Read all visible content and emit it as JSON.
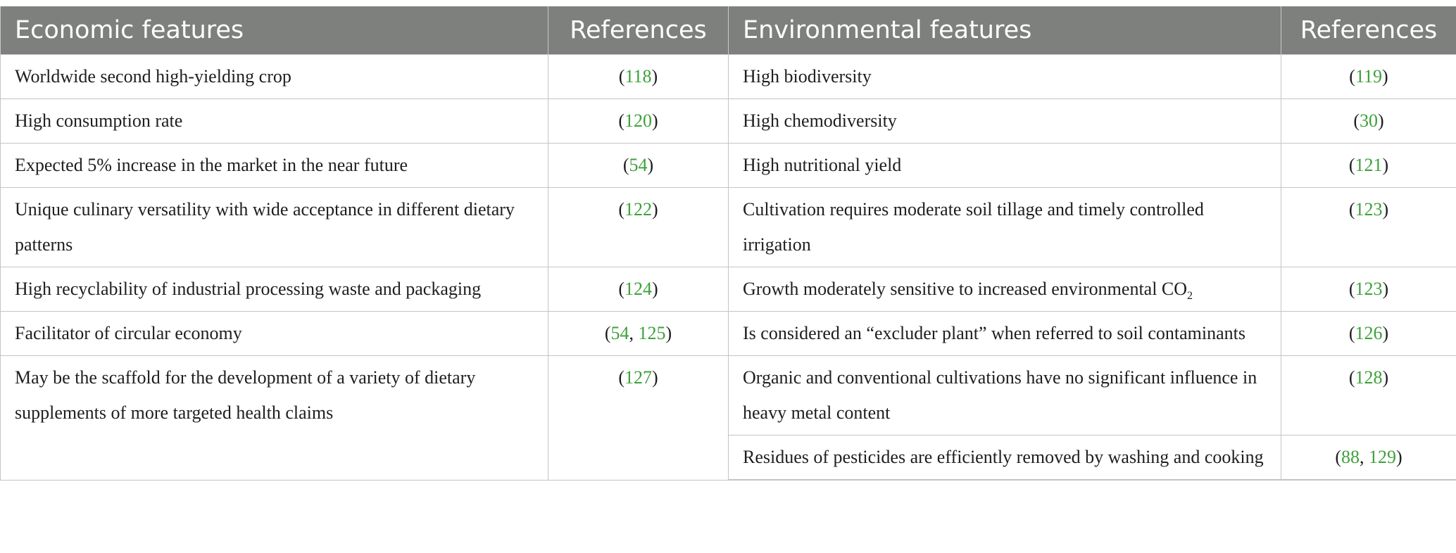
{
  "table": {
    "headers": {
      "economic": "Economic features",
      "economic_refs": "References",
      "environmental": "Environmental features",
      "environmental_refs": "References"
    },
    "rows": [
      {
        "econ": "Worldwide second high-yielding crop",
        "econ_refs": [
          "118"
        ],
        "env": "High biodiversity",
        "env_refs": [
          "119"
        ]
      },
      {
        "econ": "High consumption rate",
        "econ_refs": [
          "120"
        ],
        "env": "High chemodiversity",
        "env_refs": [
          "30"
        ]
      },
      {
        "econ": "Expected 5% increase in the market in the near future",
        "econ_refs": [
          "54"
        ],
        "env": "High nutritional yield",
        "env_refs": [
          "121"
        ]
      },
      {
        "econ": "Unique culinary versatility with wide acceptance in different dietary patterns",
        "econ_refs": [
          "122"
        ],
        "env": "Cultivation requires moderate soil tillage and timely controlled irrigation",
        "env_refs": [
          "123"
        ]
      },
      {
        "econ": "High recyclability of industrial processing waste and packaging",
        "econ_refs": [
          "124"
        ],
        "env": "Growth moderately sensitive to increased environmental CO",
        "env_sub": "2",
        "env_refs": [
          "123"
        ]
      },
      {
        "econ": "Facilitator of circular economy",
        "econ_refs": [
          "54",
          "125"
        ],
        "env": "Is considered an “excluder plant” when referred to soil contaminants",
        "env_refs": [
          "126"
        ]
      },
      {
        "econ": "May be the scaffold for the development of a variety of dietary supplements of more targeted health claims",
        "econ_refs": [
          "127"
        ],
        "env": "Organic and conventional cultivations have no significant influence in heavy metal content",
        "env_refs": [
          "128"
        ]
      },
      {
        "econ": "",
        "econ_refs": [],
        "env": "Residues of pesticides are efficiently removed by washing and cooking",
        "env_refs": [
          "88",
          "129"
        ]
      }
    ]
  }
}
